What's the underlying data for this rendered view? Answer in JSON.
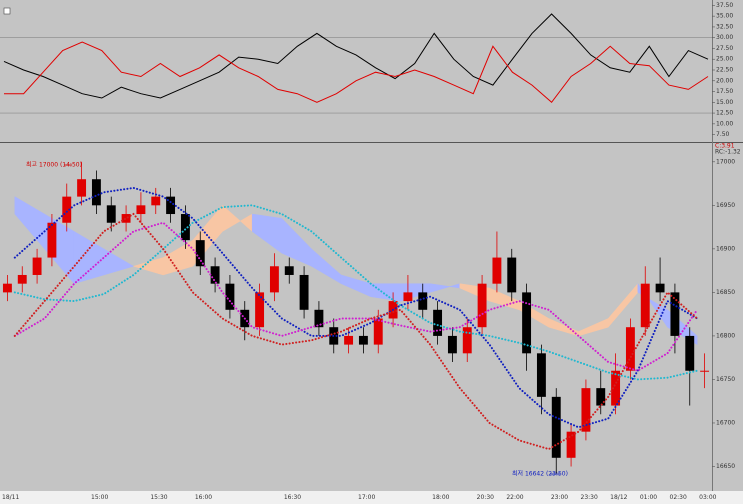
{
  "chart_data": [
    {
      "type": "line",
      "ylim": [
        6.25,
        38.75
      ],
      "yticks": [
        {
          "value": 37.5,
          "label": "37.50"
        },
        {
          "value": 35,
          "label": "35.00"
        },
        {
          "value": 32.5,
          "label": "32.50"
        },
        {
          "value": 30,
          "label": "30.00"
        },
        {
          "value": 27.5,
          "label": "27.50"
        },
        {
          "value": 25,
          "label": "25.00"
        },
        {
          "value": 22.5,
          "label": "22.50"
        },
        {
          "value": 20,
          "label": "20.00"
        },
        {
          "value": 17.5,
          "label": "17.50"
        },
        {
          "value": 15,
          "label": "15.00"
        },
        {
          "value": 12.5,
          "label": "12.50"
        },
        {
          "value": 10,
          "label": "10.00"
        },
        {
          "value": 7.5,
          "label": "7.50"
        }
      ],
      "hlines": [
        30,
        12.5
      ],
      "series": [
        {
          "color": "#000000",
          "values": [
            24.5,
            22.5,
            21,
            19,
            17,
            16,
            18.5,
            17,
            16,
            18,
            20,
            22,
            25.5,
            25,
            24,
            28,
            31,
            28,
            26,
            23,
            20.5,
            24,
            31,
            25,
            21,
            19,
            25,
            31,
            35.5,
            31,
            26,
            23,
            22,
            28,
            21,
            27,
            25
          ]
        },
        {
          "color": "#e00000",
          "values": [
            17,
            17,
            22,
            27,
            29,
            27,
            22,
            21,
            24,
            21,
            23,
            26,
            23,
            21,
            18,
            17,
            15,
            17,
            20,
            22,
            21,
            22.5,
            21,
            19,
            17,
            28,
            22,
            19,
            15,
            21,
            24,
            28,
            24,
            23.5,
            19,
            18,
            21
          ]
        }
      ]
    },
    {
      "type": "candlestick",
      "ylim": [
        16623,
        17017
      ],
      "yticks": [
        17000,
        16950,
        16900,
        16850,
        16800,
        16750,
        16700,
        16650
      ],
      "up_color": "#e00000",
      "down_color": "#000000",
      "categories": [
        "18/11",
        null,
        null,
        null,
        null,
        null,
        "15:00",
        null,
        null,
        null,
        "15:30",
        null,
        null,
        "16:00",
        null,
        null,
        null,
        null,
        null,
        "16:30",
        null,
        null,
        null,
        null,
        "17:00",
        null,
        null,
        null,
        null,
        "18:00",
        null,
        null,
        "20:30",
        null,
        "22:00",
        null,
        null,
        "23:00",
        null,
        "23:30",
        null,
        "18/12",
        null,
        "01:00",
        null,
        "02:30",
        null,
        "03:00"
      ],
      "candles": [
        [
          16850,
          16870,
          16840,
          16860
        ],
        [
          16860,
          16880,
          16850,
          16870
        ],
        [
          16870,
          16900,
          16860,
          16890
        ],
        [
          16890,
          16940,
          16880,
          16930
        ],
        [
          16930,
          16975,
          16920,
          16960
        ],
        [
          16960,
          17000,
          16950,
          16980
        ],
        [
          16980,
          16990,
          16940,
          16950
        ],
        [
          16950,
          16960,
          16920,
          16930
        ],
        [
          16930,
          16950,
          16920,
          16940
        ],
        [
          16940,
          16965,
          16930,
          16950
        ],
        [
          16950,
          16970,
          16940,
          16960
        ],
        [
          16960,
          16970,
          16930,
          16940
        ],
        [
          16940,
          16950,
          16900,
          16910
        ],
        [
          16910,
          16920,
          16870,
          16880
        ],
        [
          16880,
          16890,
          16850,
          16860
        ],
        [
          16860,
          16870,
          16820,
          16830
        ],
        [
          16830,
          16840,
          16795,
          16810
        ],
        [
          16810,
          16860,
          16800,
          16850
        ],
        [
          16850,
          16895,
          16840,
          16880
        ],
        [
          16880,
          16890,
          16860,
          16870
        ],
        [
          16870,
          16880,
          16820,
          16830
        ],
        [
          16830,
          16840,
          16800,
          16810
        ],
        [
          16810,
          16820,
          16780,
          16790
        ],
        [
          16790,
          16810,
          16780,
          16800
        ],
        [
          16800,
          16810,
          16780,
          16790
        ],
        [
          16790,
          16830,
          16780,
          16820
        ],
        [
          16820,
          16850,
          16810,
          16840
        ],
        [
          16840,
          16870,
          16830,
          16850
        ],
        [
          16850,
          16860,
          16820,
          16830
        ],
        [
          16830,
          16840,
          16790,
          16800
        ],
        [
          16800,
          16810,
          16770,
          16780
        ],
        [
          16780,
          16820,
          16770,
          16810
        ],
        [
          16810,
          16870,
          16800,
          16860
        ],
        [
          16860,
          16920,
          16850,
          16890
        ],
        [
          16890,
          16900,
          16840,
          16850
        ],
        [
          16850,
          16860,
          16760,
          16780
        ],
        [
          16780,
          16790,
          16710,
          16730
        ],
        [
          16730,
          16740,
          16642,
          16660
        ],
        [
          16660,
          16700,
          16650,
          16690
        ],
        [
          16690,
          16750,
          16680,
          16740
        ],
        [
          16740,
          16760,
          16710,
          16720
        ],
        [
          16720,
          16780,
          16710,
          16760
        ],
        [
          16760,
          16820,
          16750,
          16810
        ],
        [
          16810,
          16880,
          16800,
          16860
        ],
        [
          16860,
          16890,
          16840,
          16850
        ],
        [
          16850,
          16860,
          16780,
          16800
        ],
        [
          16800,
          16810,
          16720,
          16760
        ],
        [
          16760,
          16780,
          16740,
          16760
        ]
      ],
      "cloud": {
        "color_a": "#a8b4ff",
        "color_b": "#f8c6a4",
        "span_a": [
          16960,
          16940,
          16920,
          16900,
          16880,
          16870,
          16880,
          16920,
          16940,
          16935,
          16900,
          16870,
          16860,
          16860,
          16860,
          16855,
          16840,
          16830,
          16810,
          16800,
          16810,
          16850,
          16830,
          16800
        ],
        "span_b": [
          16940,
          16900,
          16860,
          16870,
          16880,
          16890,
          16910,
          16950,
          16920,
          16895,
          16880,
          16860,
          16845,
          16840,
          16850,
          16860,
          16855,
          16840,
          16820,
          16805,
          16820,
          16860,
          16810,
          16790
        ]
      },
      "overlays": [
        {
          "color": "#20b8d0",
          "style": "dotted",
          "values": [
            16850,
            16842,
            16840,
            16848,
            16870,
            16900,
            16930,
            16948,
            16950,
            16940,
            16920,
            16890,
            16860,
            16835,
            16815,
            16805,
            16800,
            16792,
            16782,
            16770,
            16758,
            16750,
            16752,
            16760
          ]
        },
        {
          "color": "#1020c0",
          "style": "dotted",
          "values": [
            16890,
            16920,
            16950,
            16965,
            16970,
            16960,
            16935,
            16895,
            16855,
            16820,
            16800,
            16800,
            16815,
            16835,
            16845,
            16830,
            16790,
            16740,
            16710,
            16695,
            16705,
            16760,
            16840,
            16820
          ]
        },
        {
          "color": "#d020d0",
          "style": "dotted",
          "values": [
            16800,
            16820,
            16860,
            16890,
            16920,
            16930,
            16900,
            16850,
            16810,
            16800,
            16810,
            16820,
            16820,
            16812,
            16805,
            16810,
            16830,
            16840,
            16830,
            16800,
            16770,
            16760,
            16780,
            16830
          ]
        },
        {
          "color": "#d02020",
          "style": "dotted",
          "values": [
            16800,
            16840,
            16880,
            16920,
            16940,
            16900,
            16850,
            16820,
            16800,
            16790,
            16795,
            16805,
            16820,
            16830,
            16790,
            16740,
            16700,
            16680,
            16670,
            16690,
            16730,
            16790,
            16850,
            16820
          ]
        }
      ],
      "annotations": {
        "high": "최고 17000 (14:50)",
        "low": "최저 16642 (23:50)",
        "c": "C:3.91",
        "rc": "RC:-1.32"
      }
    }
  ]
}
